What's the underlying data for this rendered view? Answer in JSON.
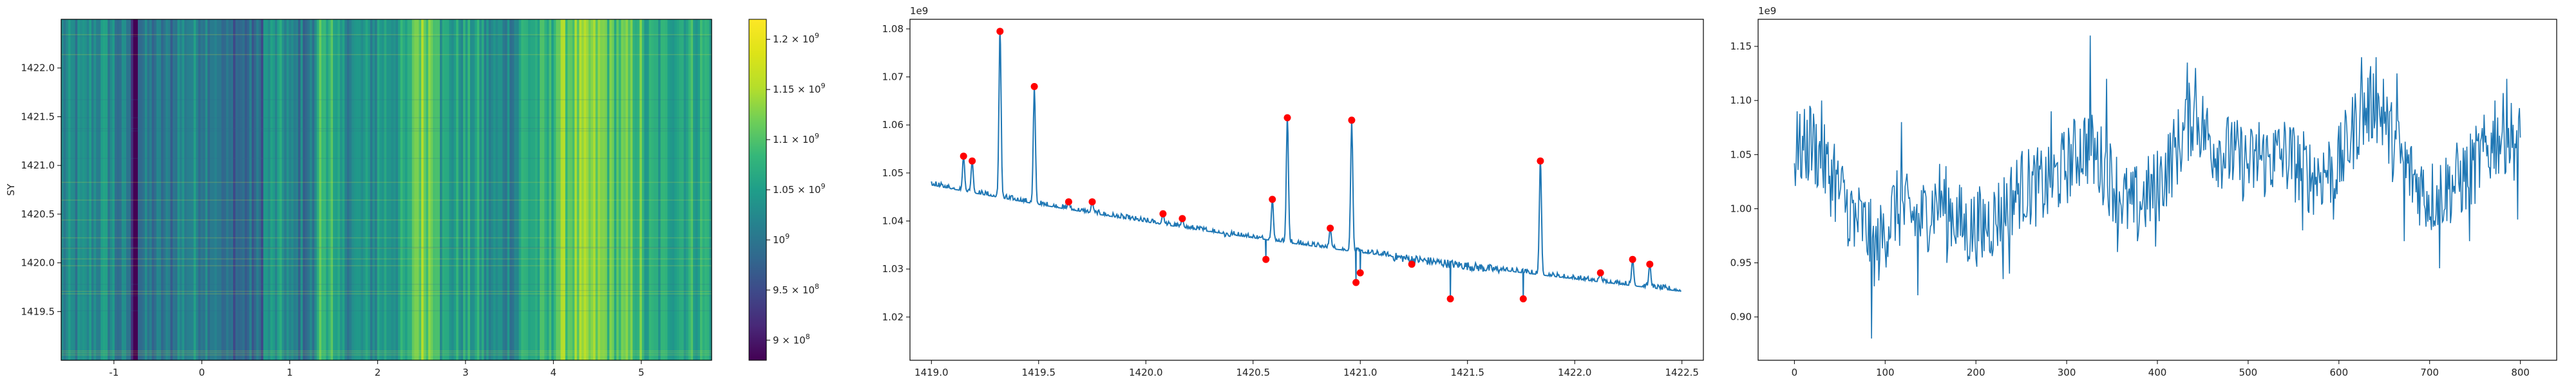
{
  "chart_data": [
    {
      "type": "heatmap",
      "ylabel": "SY",
      "xlim": [
        -1.6,
        5.8
      ],
      "ylim": [
        1419.0,
        1422.5
      ],
      "xticks": [
        "-1",
        "0",
        "1",
        "2",
        "3",
        "4",
        "5"
      ],
      "yticks": [
        "1419.5",
        "1420.0",
        "1420.5",
        "1421.0",
        "1421.5",
        "1422.0"
      ],
      "colormap": "viridis",
      "colorbar": {
        "range": [
          880000000.0,
          1220000000.0
        ],
        "tick_values": [
          900000000.0,
          950000000.0,
          1000000000.0,
          1050000000.0,
          1100000000.0,
          1150000000.0,
          1200000000.0
        ],
        "tick_mantissas": [
          "9 × 10",
          "9.5 × 10",
          "10",
          "1.05 × 10",
          "1.1 × 10",
          "1.15 × 10",
          "1.2 × 10"
        ],
        "tick_exponents": [
          "8",
          "8",
          "9",
          "9",
          "9",
          "9",
          "9"
        ]
      },
      "column_bands": [
        {
          "x": [
            -1.6,
            -1.3
          ],
          "v": 0.4
        },
        {
          "x": [
            -1.3,
            -1.0
          ],
          "v": 0.44
        },
        {
          "x": [
            -1.0,
            -0.8
          ],
          "v": 0.36
        },
        {
          "x": [
            -0.8,
            -0.72
          ],
          "v": 0.05
        },
        {
          "x": [
            -0.72,
            -0.3
          ],
          "v": 0.34
        },
        {
          "x": [
            -0.3,
            0.2
          ],
          "v": 0.42
        },
        {
          "x": [
            0.2,
            0.7
          ],
          "v": 0.3
        },
        {
          "x": [
            0.7,
            1.0
          ],
          "v": 0.45
        },
        {
          "x": [
            1.0,
            1.3
          ],
          "v": 0.36
        },
        {
          "x": [
            1.3,
            1.5
          ],
          "v": 0.62
        },
        {
          "x": [
            1.5,
            2.0
          ],
          "v": 0.44
        },
        {
          "x": [
            2.0,
            2.4
          ],
          "v": 0.5
        },
        {
          "x": [
            2.4,
            2.7
          ],
          "v": 0.72
        },
        {
          "x": [
            2.7,
            3.2
          ],
          "v": 0.5
        },
        {
          "x": [
            3.2,
            3.6
          ],
          "v": 0.42
        },
        {
          "x": [
            3.6,
            4.0
          ],
          "v": 0.55
        },
        {
          "x": [
            4.0,
            4.6
          ],
          "v": 0.7
        },
        {
          "x": [
            4.6,
            5.0
          ],
          "v": 0.64
        },
        {
          "x": [
            5.0,
            5.3
          ],
          "v": 0.52
        },
        {
          "x": [
            5.3,
            5.8
          ],
          "v": 0.56
        }
      ]
    },
    {
      "type": "line",
      "scale_label": "1e9",
      "xlim": [
        1418.9,
        1422.6
      ],
      "ylim": [
        1.011,
        1.082
      ],
      "xticks": [
        1419.0,
        1419.5,
        1420.0,
        1420.5,
        1421.0,
        1421.5,
        1422.0,
        1422.5
      ],
      "xtick_labels": [
        "1419.0",
        "1419.5",
        "1420.0",
        "1420.5",
        "1421.0",
        "1421.5",
        "1422.0",
        "1422.5"
      ],
      "yticks": [
        1.02,
        1.03,
        1.04,
        1.05,
        1.06,
        1.07,
        1.08
      ],
      "ytick_labels": [
        "1.02",
        "1.03",
        "1.04",
        "1.05",
        "1.06",
        "1.07",
        "1.08"
      ],
      "line_color": "#1f77b4",
      "peak_color": "#ff0000",
      "peaks": [
        [
          1419.15,
          1.0535
        ],
        [
          1419.19,
          1.0525
        ],
        [
          1419.32,
          1.0795
        ],
        [
          1419.48,
          1.068
        ],
        [
          1419.64,
          1.044
        ],
        [
          1419.75,
          1.044
        ],
        [
          1420.08,
          1.0415
        ],
        [
          1420.17,
          1.0405
        ],
        [
          1420.56,
          1.032
        ],
        [
          1420.59,
          1.0445
        ],
        [
          1420.66,
          1.0615
        ],
        [
          1420.86,
          1.0385
        ],
        [
          1420.96,
          1.061
        ],
        [
          1420.98,
          1.0272
        ],
        [
          1421.0,
          1.0292
        ],
        [
          1421.24,
          1.031
        ],
        [
          1421.42,
          1.0238
        ],
        [
          1421.76,
          1.0238
        ],
        [
          1421.84,
          1.0525
        ],
        [
          1422.12,
          1.0292
        ],
        [
          1422.27,
          1.032
        ],
        [
          1422.35,
          1.031
        ]
      ]
    },
    {
      "type": "line",
      "scale_label": "1e9",
      "xlim": [
        -40,
        840
      ],
      "ylim": [
        0.86,
        1.175
      ],
      "xticks": [
        0,
        100,
        200,
        300,
        400,
        500,
        600,
        700,
        800
      ],
      "xtick_labels": [
        "0",
        "100",
        "200",
        "300",
        "400",
        "500",
        "600",
        "700",
        "800"
      ],
      "yticks": [
        0.9,
        0.95,
        1.0,
        1.05,
        1.1,
        1.15
      ],
      "ytick_labels": [
        "0.90",
        "0.95",
        "1.00",
        "1.05",
        "1.10",
        "1.15"
      ],
      "line_color": "#1f77b4",
      "anchors": [
        [
          0,
          1.05
        ],
        [
          20,
          1.06
        ],
        [
          40,
          1.03
        ],
        [
          60,
          1.0
        ],
        [
          80,
          0.98
        ],
        [
          90,
          0.96
        ],
        [
          110,
          1.0
        ],
        [
          140,
          0.99
        ],
        [
          160,
          1.01
        ],
        [
          190,
          0.98
        ],
        [
          220,
          0.99
        ],
        [
          250,
          1.02
        ],
        [
          280,
          1.02
        ],
        [
          300,
          1.04
        ],
        [
          320,
          1.06
        ],
        [
          340,
          1.04
        ],
        [
          370,
          1.0
        ],
        [
          400,
          1.02
        ],
        [
          430,
          1.07
        ],
        [
          440,
          1.09
        ],
        [
          460,
          1.06
        ],
        [
          500,
          1.04
        ],
        [
          540,
          1.05
        ],
        [
          570,
          1.03
        ],
        [
          600,
          1.04
        ],
        [
          620,
          1.08
        ],
        [
          640,
          1.1
        ],
        [
          660,
          1.06
        ],
        [
          680,
          1.03
        ],
        [
          700,
          1.01
        ],
        [
          720,
          1.02
        ],
        [
          740,
          1.03
        ],
        [
          760,
          1.05
        ],
        [
          780,
          1.07
        ],
        [
          800,
          1.06
        ]
      ],
      "spikes": [
        [
          3,
          1.09
        ],
        [
          17,
          1.095
        ],
        [
          30,
          1.1
        ],
        [
          44,
          1.06
        ],
        [
          61,
          0.97
        ],
        [
          66,
          0.965
        ],
        [
          85,
          0.88
        ],
        [
          118,
          1.08
        ],
        [
          136,
          0.92
        ],
        [
          168,
          0.95
        ],
        [
          207,
          0.955
        ],
        [
          230,
          0.935
        ],
        [
          237,
          0.94
        ],
        [
          283,
          1.09
        ],
        [
          326,
          1.16
        ],
        [
          344,
          1.12
        ],
        [
          356,
          0.96
        ],
        [
          378,
          0.97
        ],
        [
          398,
          0.965
        ],
        [
          433,
          1.135
        ],
        [
          442,
          1.13
        ],
        [
          482,
          1.08
        ],
        [
          512,
          1.08
        ],
        [
          528,
          1.07
        ],
        [
          560,
          0.98
        ],
        [
          594,
          0.99
        ],
        [
          625,
          1.14
        ],
        [
          641,
          1.14
        ],
        [
          649,
          1.12
        ],
        [
          664,
          1.125
        ],
        [
          672,
          0.97
        ],
        [
          711,
          0.945
        ],
        [
          744,
          0.97
        ],
        [
          772,
          1.1
        ],
        [
          785,
          1.12
        ],
        [
          797,
          0.99
        ]
      ]
    }
  ]
}
